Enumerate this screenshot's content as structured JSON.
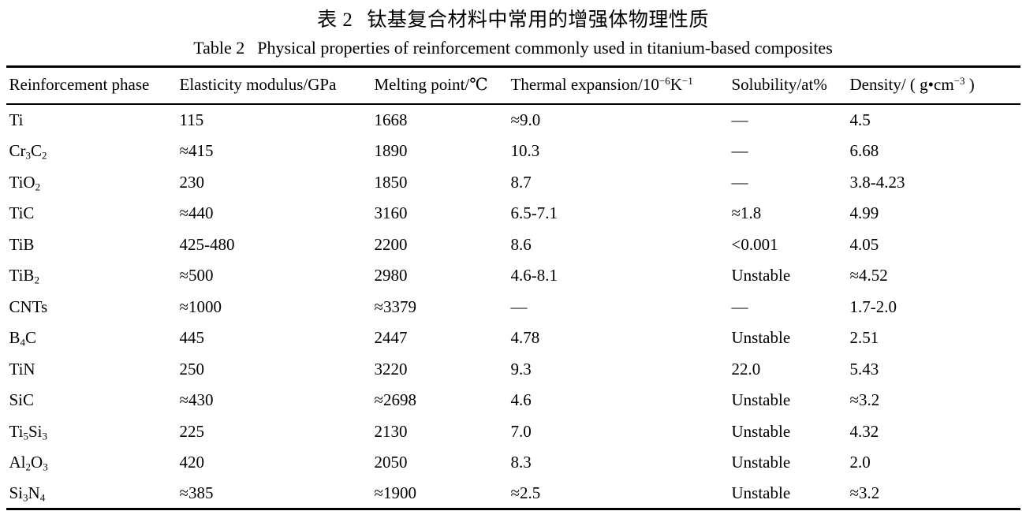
{
  "page": {
    "background": "#ffffff",
    "text_color": "#000000"
  },
  "title_zh": {
    "label": "表 2",
    "text": "钛基复合材料中常用的增强体物理性质"
  },
  "title_en": {
    "label": "Table 2",
    "text": "Physical properties of reinforcement commonly used in titanium-based composites"
  },
  "chart_data": {
    "type": "table",
    "columns": [
      "Reinforcement phase",
      "Elasticity modulus/GPa",
      "Melting point/℃",
      "Thermal expansion/10^{−6}K^{−1}",
      "Solubility/at%",
      "Density/ ( g•cm^{−3} )"
    ],
    "rows": [
      [
        "Ti",
        "115",
        "1668",
        "≈9.0",
        "—",
        "4.5"
      ],
      [
        "Cr_{3}C_{2}",
        "≈415",
        "1890",
        "10.3",
        "—",
        "6.68"
      ],
      [
        "TiO_{2}",
        "230",
        "1850",
        "8.7",
        "—",
        "3.8-4.23"
      ],
      [
        "TiC",
        "≈440",
        "3160",
        "6.5-7.1",
        "≈1.8",
        "4.99"
      ],
      [
        "TiB",
        "425-480",
        "2200",
        "8.6",
        "<0.001",
        "4.05"
      ],
      [
        "TiB_{2}",
        "≈500",
        "2980",
        "4.6-8.1",
        "Unstable",
        "≈4.52"
      ],
      [
        "CNTs",
        "≈1000",
        "≈3379",
        "—",
        "—",
        "1.7-2.0"
      ],
      [
        "B_{4}C",
        "445",
        "2447",
        "4.78",
        "Unstable",
        "2.51"
      ],
      [
        "TiN",
        "250",
        "3220",
        "9.3",
        "22.0",
        "5.43"
      ],
      [
        "SiC",
        "≈430",
        "≈2698",
        "4.6",
        "Unstable",
        "≈3.2"
      ],
      [
        "Ti_{5}Si_{3}",
        "225",
        "2130",
        "7.0",
        "Unstable",
        "4.32"
      ],
      [
        "Al_{2}O_{3}",
        "420",
        "2050",
        "8.3",
        "Unstable",
        "2.0"
      ],
      [
        "Si_{3}N_{4}",
        "≈385",
        "≈1900",
        "≈2.5",
        "Unstable",
        "≈3.2"
      ]
    ]
  }
}
